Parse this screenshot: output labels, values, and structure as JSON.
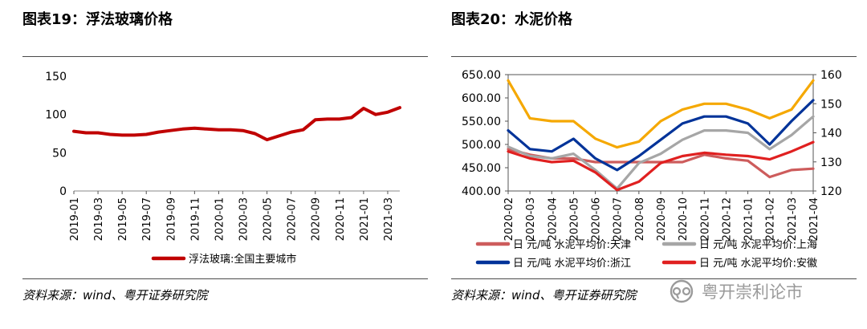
{
  "left_panel": {
    "title": "图表19：浮法玻璃价格",
    "source": "资料来源：wind、粤开证券研究院"
  },
  "right_panel": {
    "title": "图表20：水泥价格",
    "source": "资料来源：wind、粤开证券研究院"
  },
  "watermark": {
    "text": "粤开崇利论市",
    "icon": "wechat-official-account-icon"
  },
  "chart_data": [
    {
      "type": "line",
      "title": "",
      "ylim": [
        0,
        150
      ],
      "y_ticks": [
        0,
        50,
        100,
        150
      ],
      "x_range": [
        "2019-01",
        "2021-04"
      ],
      "x_ticks": [
        "2019-01",
        "2019-03",
        "2019-05",
        "2019-07",
        "2019-09",
        "2019-11",
        "2020-01",
        "2020-03",
        "2020-05",
        "2020-07",
        "2020-09",
        "2020-11",
        "2021-01",
        "2021-03"
      ],
      "grid": false,
      "legend_position": "bottom",
      "series": [
        {
          "name": "浮法玻璃:全国主要城市",
          "color": "#c00000",
          "x": [
            "2019-01",
            "2019-02",
            "2019-03",
            "2019-04",
            "2019-05",
            "2019-06",
            "2019-07",
            "2019-08",
            "2019-09",
            "2019-10",
            "2019-11",
            "2019-12",
            "2020-01",
            "2020-02",
            "2020-03",
            "2020-04",
            "2020-05",
            "2020-06",
            "2020-07",
            "2020-08",
            "2020-09",
            "2020-10",
            "2020-11",
            "2020-12",
            "2021-01",
            "2021-02",
            "2021-03",
            "2021-04"
          ],
          "values": [
            78,
            76,
            76,
            74,
            73,
            73,
            74,
            77,
            79,
            81,
            82,
            81,
            80,
            80,
            79,
            75,
            67,
            72,
            77,
            80,
            93,
            94,
            94,
            96,
            108,
            100,
            103,
            109
          ]
        }
      ]
    },
    {
      "type": "line",
      "title": "",
      "ylim": [
        400,
        650
      ],
      "y_ticks": [
        "400.00",
        "450.00",
        "500.00",
        "550.00",
        "600.00",
        "650.00"
      ],
      "y2lim": [
        120,
        160
      ],
      "y2_ticks": [
        120,
        130,
        140,
        150,
        160
      ],
      "x_range": [
        "2020-02",
        "2021-04"
      ],
      "x_ticks": [
        "2020-02",
        "2020-03",
        "2020-04",
        "2020-05",
        "2020-06",
        "2020-07",
        "2020-08",
        "2020-09",
        "2020-10",
        "2020-11",
        "2020-12",
        "2021-01",
        "2021-02",
        "2021-03",
        "2021-04"
      ],
      "grid": false,
      "legend_position": "bottom",
      "series": [
        {
          "name": "日 元/吨 水泥平均价:天津",
          "color": "#cd5c5c",
          "axis": "left",
          "x": [
            "2020-02",
            "2020-03",
            "2020-04",
            "2020-05",
            "2020-06",
            "2020-07",
            "2020-08",
            "2020-09",
            "2020-10",
            "2020-11",
            "2020-12",
            "2021-01",
            "2021-02",
            "2021-03",
            "2021-04"
          ],
          "values": [
            490,
            478,
            470,
            470,
            462,
            462,
            462,
            462,
            462,
            478,
            470,
            465,
            430,
            445,
            448
          ]
        },
        {
          "name": "日 元/吨 水泥平均价:上海",
          "color": "#a6a6a6",
          "axis": "left",
          "x": [
            "2020-02",
            "2020-03",
            "2020-04",
            "2020-05",
            "2020-06",
            "2020-07",
            "2020-08",
            "2020-09",
            "2020-10",
            "2020-11",
            "2020-12",
            "2021-01",
            "2021-02",
            "2021-03",
            "2021-04"
          ],
          "values": [
            495,
            475,
            470,
            480,
            445,
            405,
            460,
            480,
            510,
            530,
            530,
            525,
            490,
            520,
            560
          ]
        },
        {
          "name": "日 元/吨 水泥平均价:浙江",
          "color": "#003399",
          "axis": "left",
          "x": [
            "2020-02",
            "2020-03",
            "2020-04",
            "2020-05",
            "2020-06",
            "2020-07",
            "2020-08",
            "2020-09",
            "2020-10",
            "2020-11",
            "2020-12",
            "2021-01",
            "2021-02",
            "2021-03",
            "2021-04"
          ],
          "values": [
            530,
            490,
            485,
            512,
            470,
            445,
            475,
            510,
            545,
            560,
            560,
            545,
            500,
            550,
            595
          ]
        },
        {
          "name": "日 元/吨 水泥平均价:安徽",
          "color": "#e02020",
          "axis": "left",
          "x": [
            "2020-02",
            "2020-03",
            "2020-04",
            "2020-05",
            "2020-06",
            "2020-07",
            "2020-08",
            "2020-09",
            "2020-10",
            "2020-11",
            "2020-12",
            "2021-01",
            "2021-02",
            "2021-03",
            "2021-04"
          ],
          "values": [
            485,
            470,
            462,
            465,
            440,
            402,
            420,
            460,
            475,
            482,
            478,
            475,
            468,
            485,
            505
          ]
        },
        {
          "name": "",
          "color": "#f5a800",
          "axis": "right",
          "x": [
            "2020-02",
            "2020-03",
            "2020-04",
            "2020-05",
            "2020-06",
            "2020-07",
            "2020-08",
            "2020-09",
            "2020-10",
            "2020-11",
            "2020-12",
            "2021-01",
            "2021-02",
            "2021-03",
            "2021-04"
          ],
          "values": [
            158,
            145,
            144,
            144,
            138,
            135,
            137,
            144,
            148,
            150,
            150,
            148,
            145,
            148,
            158
          ]
        }
      ]
    }
  ]
}
